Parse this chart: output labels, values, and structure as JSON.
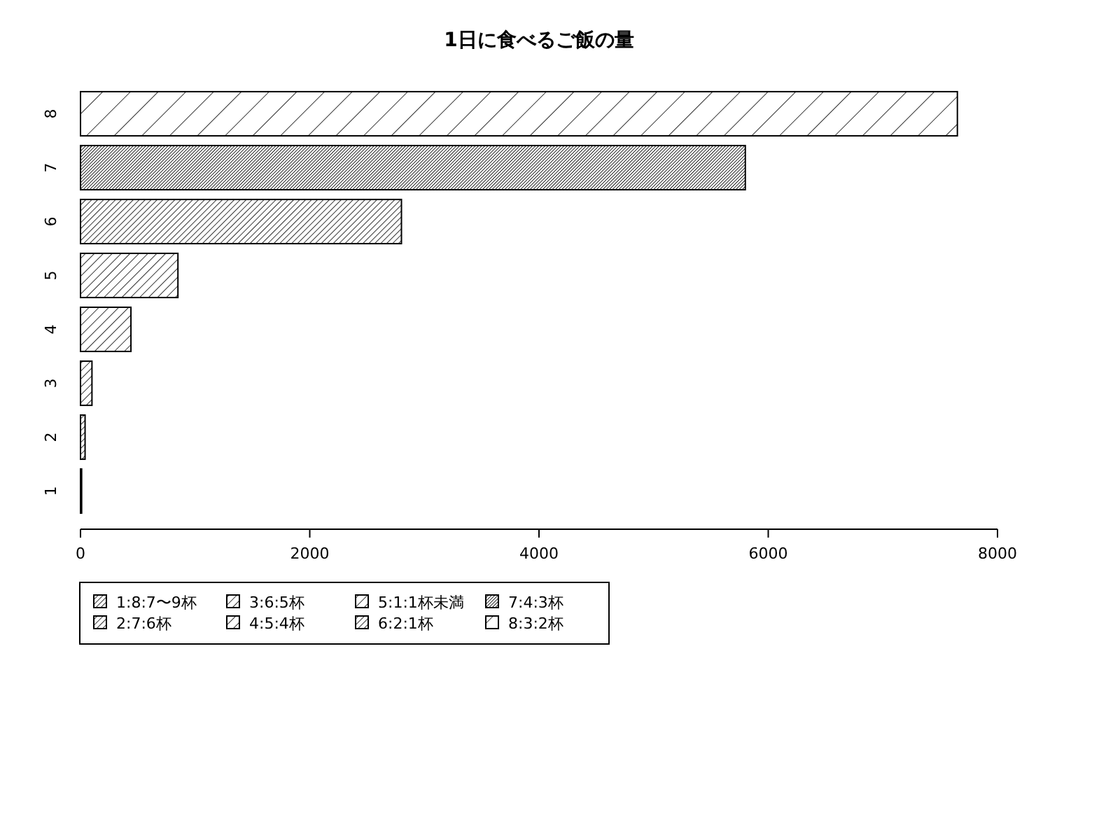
{
  "chart_data": {
    "type": "bar",
    "orientation": "horizontal",
    "title": "1日に食べるご飯の量",
    "categories": [
      "8",
      "7",
      "6",
      "5",
      "4",
      "3",
      "2",
      "1"
    ],
    "series": [
      {
        "name": "1:8:7〜9杯",
        "color": "#000000",
        "values": [
          null,
          null,
          null,
          null,
          null,
          null,
          null,
          10
        ]
      },
      {
        "name": "2:7:6杯",
        "color": "#000000",
        "values": [
          null,
          null,
          null,
          null,
          null,
          null,
          40,
          null
        ]
      },
      {
        "name": "3:6:5杯",
        "color": "#000000",
        "values": [
          null,
          null,
          null,
          null,
          null,
          100,
          null,
          null
        ]
      },
      {
        "name": "4:5:4杯",
        "color": "#000000",
        "values": [
          null,
          null,
          null,
          null,
          440,
          null,
          null,
          null
        ]
      },
      {
        "name": "5:1:1杯未満",
        "color": "#000000",
        "values": [
          null,
          null,
          null,
          850,
          null,
          null,
          null,
          null
        ]
      },
      {
        "name": "6:2:1杯",
        "color": "#000000",
        "values": [
          null,
          null,
          2800,
          null,
          null,
          null,
          null,
          null
        ]
      },
      {
        "name": "7:4:3杯",
        "color": "#000000",
        "values": [
          null,
          5800,
          null,
          null,
          null,
          null,
          null,
          null
        ]
      },
      {
        "name": "8:3:2杯",
        "color": "#000000",
        "values": [
          7650,
          null,
          null,
          null,
          null,
          null,
          null,
          null
        ]
      }
    ],
    "xlim": [
      0,
      8000
    ],
    "xticks": [
      0,
      2000,
      4000,
      6000,
      8000
    ],
    "legend": "bottom left",
    "grid": false
  }
}
